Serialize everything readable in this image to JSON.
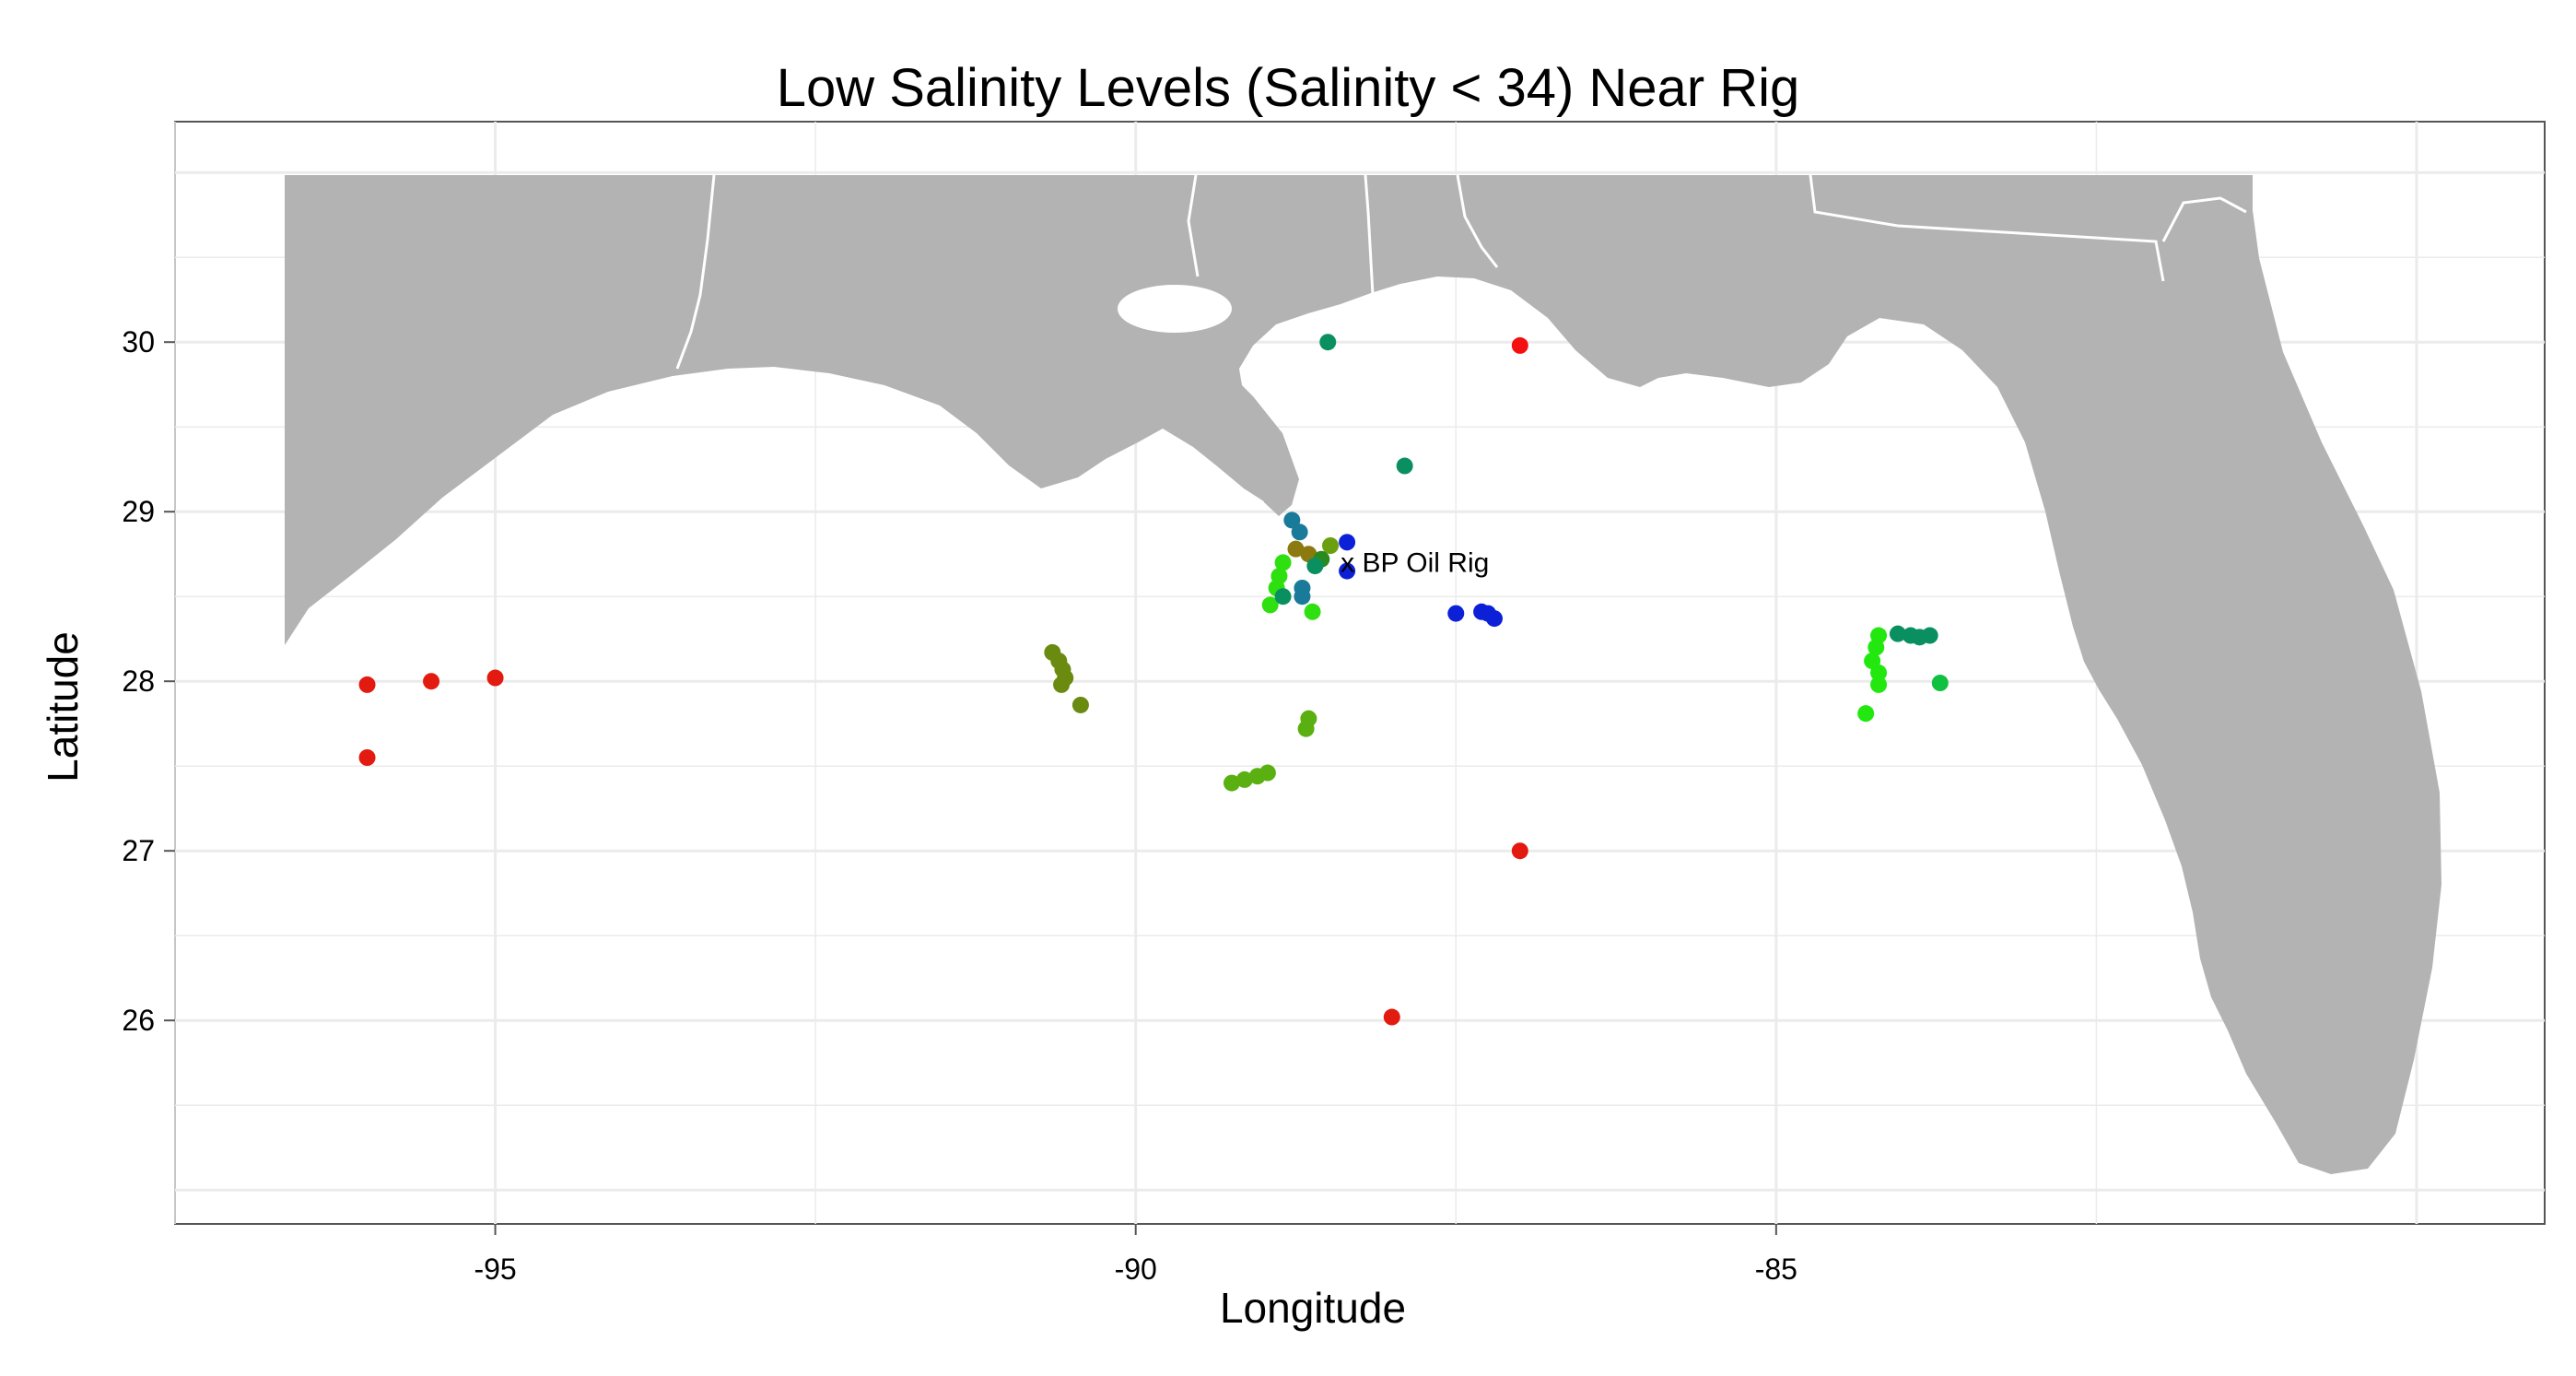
{
  "title": "Low Salinity Levels (Salinity < 34) Near Rig",
  "xlabel": "Longitude",
  "ylabel": "Latitude",
  "annotation": "x BP Oil Rig",
  "chart_data": {
    "type": "scatter",
    "title": "Low Salinity Levels (Salinity < 34) Near Rig",
    "xlabel": "Longitude",
    "ylabel": "Latitude",
    "xlim": [
      -97.5,
      -79.0
    ],
    "ylim": [
      24.8,
      31.3
    ],
    "x_ticks": [
      -95,
      -90,
      -85
    ],
    "y_ticks": [
      26,
      27,
      28,
      29,
      30
    ],
    "grid": true,
    "legend": "none",
    "annotation": {
      "text": "x BP Oil Rig",
      "x": -88.4,
      "y": 28.7
    },
    "colors": {
      "land": "#b3b3b3",
      "panel": "#ffffff",
      "grid": "#ebebeb",
      "borders": "#ffffff",
      "frame": "#555555"
    },
    "points": [
      {
        "x": -96.0,
        "y": 27.98,
        "color": "#e31a0f"
      },
      {
        "x": -95.5,
        "y": 28.0,
        "color": "#e31a0f"
      },
      {
        "x": -95.0,
        "y": 28.02,
        "color": "#e31a0f"
      },
      {
        "x": -96.0,
        "y": 27.55,
        "color": "#e31a0f"
      },
      {
        "x": -87.0,
        "y": 29.98,
        "color": "#f21010"
      },
      {
        "x": -87.0,
        "y": 27.0,
        "color": "#e31a0f"
      },
      {
        "x": -88.0,
        "y": 26.02,
        "color": "#e31a0f"
      },
      {
        "x": -88.5,
        "y": 30.0,
        "color": "#0a9060"
      },
      {
        "x": -87.9,
        "y": 29.27,
        "color": "#0a9060"
      },
      {
        "x": -87.5,
        "y": 28.4,
        "color": "#0c20d8"
      },
      {
        "x": -87.3,
        "y": 28.41,
        "color": "#0c20d8"
      },
      {
        "x": -87.25,
        "y": 28.4,
        "color": "#0c20d8"
      },
      {
        "x": -87.2,
        "y": 28.37,
        "color": "#0c20d8"
      },
      {
        "x": -88.35,
        "y": 28.82,
        "color": "#0c20d8"
      },
      {
        "x": -88.35,
        "y": 28.65,
        "color": "#0c20d8"
      },
      {
        "x": -88.78,
        "y": 28.95,
        "color": "#1a7a9a"
      },
      {
        "x": -88.72,
        "y": 28.88,
        "color": "#1a7a9a"
      },
      {
        "x": -88.75,
        "y": 28.78,
        "color": "#8a7a10"
      },
      {
        "x": -88.65,
        "y": 28.75,
        "color": "#8a7a10"
      },
      {
        "x": -88.55,
        "y": 28.72,
        "color": "#2a8a20"
      },
      {
        "x": -88.48,
        "y": 28.8,
        "color": "#6aa010"
      },
      {
        "x": -88.6,
        "y": 28.68,
        "color": "#0a9060"
      },
      {
        "x": -88.85,
        "y": 28.7,
        "color": "#2ee010"
      },
      {
        "x": -88.88,
        "y": 28.62,
        "color": "#2ee010"
      },
      {
        "x": -88.9,
        "y": 28.55,
        "color": "#2ee010"
      },
      {
        "x": -88.95,
        "y": 28.45,
        "color": "#2ee010"
      },
      {
        "x": -88.85,
        "y": 28.5,
        "color": "#0a9060"
      },
      {
        "x": -88.7,
        "y": 28.55,
        "color": "#1a7a9a"
      },
      {
        "x": -88.7,
        "y": 28.5,
        "color": "#1a7a9a"
      },
      {
        "x": -88.62,
        "y": 28.41,
        "color": "#2ee010"
      },
      {
        "x": -90.65,
        "y": 28.17,
        "color": "#6a8a10"
      },
      {
        "x": -90.6,
        "y": 28.12,
        "color": "#6a8a10"
      },
      {
        "x": -90.57,
        "y": 28.07,
        "color": "#6a8a10"
      },
      {
        "x": -90.55,
        "y": 28.02,
        "color": "#6a8a10"
      },
      {
        "x": -90.58,
        "y": 27.98,
        "color": "#6a8a10"
      },
      {
        "x": -90.43,
        "y": 27.86,
        "color": "#6a8a10"
      },
      {
        "x": -88.65,
        "y": 27.78,
        "color": "#5ab010"
      },
      {
        "x": -88.67,
        "y": 27.72,
        "color": "#5ab010"
      },
      {
        "x": -89.25,
        "y": 27.4,
        "color": "#5ab010"
      },
      {
        "x": -89.15,
        "y": 27.42,
        "color": "#5ab010"
      },
      {
        "x": -89.05,
        "y": 27.44,
        "color": "#5ab010"
      },
      {
        "x": -88.97,
        "y": 27.46,
        "color": "#5ab010"
      },
      {
        "x": -84.2,
        "y": 28.27,
        "color": "#22e810"
      },
      {
        "x": -84.22,
        "y": 28.2,
        "color": "#22e810"
      },
      {
        "x": -84.25,
        "y": 28.12,
        "color": "#22e810"
      },
      {
        "x": -84.2,
        "y": 28.05,
        "color": "#22e810"
      },
      {
        "x": -84.2,
        "y": 27.98,
        "color": "#22e810"
      },
      {
        "x": -84.3,
        "y": 27.81,
        "color": "#22e810"
      },
      {
        "x": -84.05,
        "y": 28.28,
        "color": "#0a9060"
      },
      {
        "x": -83.95,
        "y": 28.27,
        "color": "#0a9060"
      },
      {
        "x": -83.88,
        "y": 28.26,
        "color": "#0a9060"
      },
      {
        "x": -83.8,
        "y": 28.27,
        "color": "#0a9060"
      },
      {
        "x": -83.72,
        "y": 27.99,
        "color": "#10c040"
      }
    ]
  }
}
